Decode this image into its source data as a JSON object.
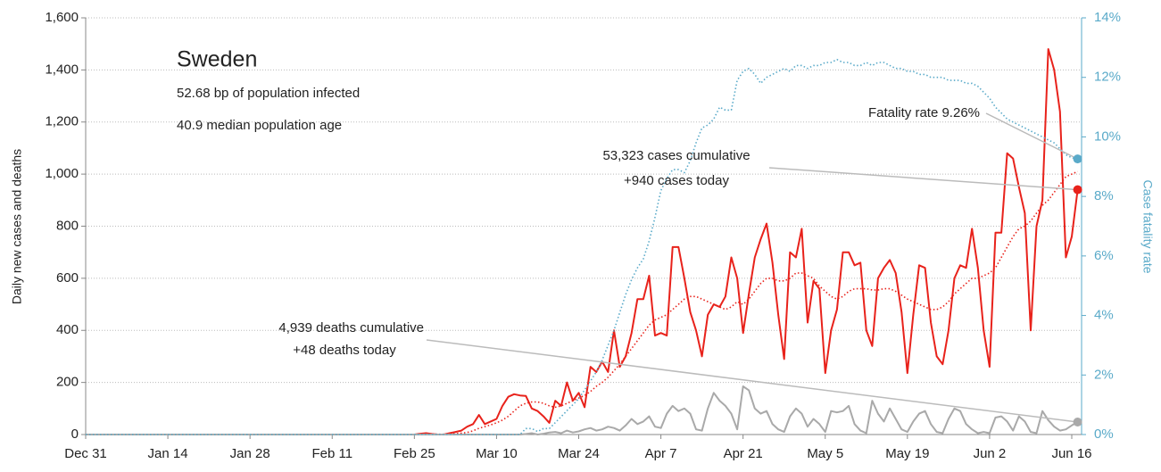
{
  "chart_data": {
    "type": "line",
    "title": "Sweden",
    "annotations": [
      "52.68 bp of population infected",
      "40.9 median population age",
      "Fatality rate 9.26%",
      "53,323 cases cumulative",
      "+940 cases today",
      "4,939 deaths cumulative",
      "+48 deaths today"
    ],
    "ylabel": "Daily new cases and deaths",
    "y2label": "Case fatality rate",
    "ylim": [
      0,
      1600
    ],
    "yticks": [
      0,
      200,
      400,
      600,
      800,
      {
        "value": 1000,
        "label": "1,000"
      },
      {
        "value": 1200,
        "label": "1,200"
      },
      {
        "value": 1400,
        "label": "1,400"
      },
      {
        "value": 1600,
        "label": "1,600"
      }
    ],
    "y2lim": [
      0,
      14
    ],
    "y2ticks": [
      {
        "value": 0,
        "label": "0%"
      },
      {
        "value": 2,
        "label": "2%"
      },
      {
        "value": 4,
        "label": "4%"
      },
      {
        "value": 6,
        "label": "6%"
      },
      {
        "value": 8,
        "label": "8%"
      },
      {
        "value": 10,
        "label": "10%"
      },
      {
        "value": 12,
        "label": "12%"
      },
      {
        "value": 14,
        "label": "14%"
      }
    ],
    "grid": true,
    "categories": [
      "Dec 31",
      null,
      null,
      null,
      null,
      null,
      null,
      null,
      null,
      null,
      null,
      null,
      null,
      null,
      "Jan 14",
      null,
      null,
      null,
      null,
      null,
      null,
      null,
      null,
      null,
      null,
      null,
      null,
      null,
      "Jan 28",
      null,
      null,
      null,
      null,
      null,
      null,
      null,
      null,
      null,
      null,
      null,
      null,
      null,
      "Feb 11",
      null,
      null,
      null,
      null,
      null,
      null,
      null,
      null,
      null,
      null,
      null,
      null,
      null,
      "Feb 25",
      null,
      null,
      null,
      null,
      null,
      null,
      null,
      null,
      null,
      null,
      null,
      null,
      null,
      "Mar 10",
      null,
      null,
      null,
      null,
      null,
      null,
      null,
      null,
      null,
      null,
      null,
      null,
      null,
      "Mar 24",
      null,
      null,
      null,
      null,
      null,
      null,
      null,
      null,
      null,
      null,
      null,
      null,
      null,
      "Apr 7",
      null,
      null,
      null,
      null,
      null,
      null,
      null,
      null,
      null,
      null,
      null,
      null,
      null,
      "Apr 21",
      null,
      null,
      null,
      null,
      null,
      null,
      null,
      null,
      null,
      null,
      null,
      null,
      null,
      "May 5",
      null,
      null,
      null,
      null,
      null,
      null,
      null,
      null,
      null,
      null,
      null,
      null,
      null,
      "May 19",
      null,
      null,
      null,
      null,
      null,
      null,
      null,
      null,
      null,
      null,
      null,
      null,
      null,
      "Jun 2",
      null,
      null,
      null,
      null,
      null,
      null,
      null,
      null,
      null,
      null,
      null,
      null,
      null,
      "Jun 16",
      null
    ],
    "series": [
      {
        "color": "#e8221b",
        "style": "solid",
        "values": [
          0,
          0,
          0,
          0,
          0,
          0,
          0,
          0,
          0,
          0,
          0,
          0,
          0,
          0,
          0,
          0,
          0,
          0,
          0,
          0,
          0,
          0,
          0,
          0,
          0,
          0,
          0,
          0,
          0,
          0,
          0,
          0,
          0,
          0,
          0,
          0,
          0,
          0,
          0,
          0,
          0,
          0,
          0,
          0,
          0,
          0,
          0,
          0,
          0,
          0,
          0,
          0,
          0,
          0,
          0,
          0,
          0,
          3,
          5,
          2,
          0,
          0,
          5,
          10,
          15,
          30,
          40,
          75,
          40,
          50,
          60,
          110,
          145,
          155,
          150,
          148,
          100,
          90,
          70,
          45,
          130,
          110,
          200,
          130,
          160,
          105,
          260,
          240,
          280,
          240,
          400,
          260,
          300,
          390,
          520,
          520,
          610,
          380,
          390,
          380,
          720,
          720,
          600,
          470,
          400,
          300,
          460,
          500,
          490,
          530,
          680,
          600,
          390,
          540,
          680,
          750,
          810,
          660,
          460,
          290,
          700,
          680,
          790,
          430,
          590,
          560,
          236,
          400,
          480,
          700,
          700,
          650,
          660,
          400,
          340,
          600,
          640,
          670,
          620,
          470,
          236,
          460,
          650,
          640,
          430,
          300,
          270,
          400,
          600,
          650,
          640,
          790,
          640,
          400,
          260,
          775,
          775,
          1080,
          1060,
          950,
          850,
          400,
          800,
          900,
          1480,
          1400,
          1240,
          680,
          760,
          940
        ]
      },
      {
        "color": "#e8221b",
        "style": "dotted",
        "values": [
          0,
          0,
          0,
          0,
          0,
          0,
          0,
          0,
          0,
          0,
          0,
          0,
          0,
          0,
          0,
          0,
          0,
          0,
          0,
          0,
          0,
          0,
          0,
          0,
          0,
          0,
          0,
          0,
          0,
          0,
          0,
          0,
          0,
          0,
          0,
          0,
          0,
          0,
          0,
          0,
          0,
          0,
          0,
          0,
          0,
          0,
          0,
          0,
          0,
          0,
          0,
          0,
          0,
          0,
          0,
          0,
          0,
          1,
          1,
          1,
          1,
          1,
          2,
          3,
          5,
          8,
          14,
          24,
          30,
          37,
          45,
          55,
          70,
          90,
          110,
          120,
          125,
          125,
          120,
          110,
          105,
          110,
          120,
          130,
          140,
          150,
          165,
          185,
          200,
          220,
          245,
          270,
          300,
          330,
          360,
          390,
          420,
          440,
          450,
          460,
          480,
          500,
          520,
          530,
          530,
          520,
          510,
          500,
          490,
          480,
          490,
          510,
          500,
          520,
          550,
          580,
          600,
          600,
          590,
          590,
          600,
          620,
          620,
          610,
          600,
          570,
          550,
          530,
          520,
          530,
          550,
          560,
          560,
          560,
          555,
          555,
          560,
          560,
          550,
          535,
          520,
          510,
          500,
          490,
          480,
          480,
          490,
          510,
          540,
          560,
          580,
          600,
          600,
          610,
          620,
          640,
          680,
          720,
          760,
          790,
          800,
          820,
          850,
          880,
          900,
          930,
          960,
          990,
          1000,
          1010
        ]
      },
      {
        "color": "#a9a9a9",
        "style": "solid",
        "values": [
          0,
          0,
          0,
          0,
          0,
          0,
          0,
          0,
          0,
          0,
          0,
          0,
          0,
          0,
          0,
          0,
          0,
          0,
          0,
          0,
          0,
          0,
          0,
          0,
          0,
          0,
          0,
          0,
          0,
          0,
          0,
          0,
          0,
          0,
          0,
          0,
          0,
          0,
          0,
          0,
          0,
          0,
          0,
          0,
          0,
          0,
          0,
          0,
          0,
          0,
          0,
          0,
          0,
          0,
          0,
          0,
          0,
          0,
          0,
          0,
          0,
          0,
          0,
          0,
          0,
          0,
          0,
          0,
          0,
          0,
          0,
          0,
          0,
          0,
          0,
          2,
          5,
          0,
          3,
          8,
          10,
          5,
          15,
          8,
          12,
          20,
          25,
          15,
          20,
          30,
          25,
          15,
          35,
          60,
          40,
          50,
          70,
          30,
          25,
          80,
          110,
          90,
          100,
          80,
          20,
          15,
          100,
          160,
          130,
          110,
          80,
          20,
          185,
          170,
          100,
          80,
          90,
          40,
          20,
          10,
          70,
          100,
          80,
          30,
          60,
          40,
          10,
          90,
          85,
          90,
          110,
          40,
          15,
          5,
          130,
          80,
          50,
          100,
          60,
          20,
          10,
          50,
          80,
          90,
          40,
          10,
          5,
          60,
          100,
          90,
          40,
          20,
          5,
          10,
          5,
          65,
          70,
          50,
          15,
          70,
          50,
          10,
          5,
          90,
          55,
          30,
          15,
          20,
          35,
          48
        ]
      },
      {
        "color": "#5aaac9",
        "style": "dotted",
        "axis": "y2",
        "values": [
          0,
          0,
          0,
          0,
          0,
          0,
          0,
          0,
          0,
          0,
          0,
          0,
          0,
          0,
          0,
          0,
          0,
          0,
          0,
          0,
          0,
          0,
          0,
          0,
          0,
          0,
          0,
          0,
          0,
          0,
          0,
          0,
          0,
          0,
          0,
          0,
          0,
          0,
          0,
          0,
          0,
          0,
          0,
          0,
          0,
          0,
          0,
          0,
          0,
          0,
          0,
          0,
          0,
          0,
          0,
          0,
          0,
          0,
          0,
          0,
          0,
          0,
          0,
          0,
          0,
          0,
          0,
          0,
          0,
          0,
          0,
          0,
          0,
          0,
          0,
          0.2,
          0.2,
          0.1,
          0.2,
          0.2,
          0.4,
          0.6,
          0.8,
          1.0,
          1.2,
          1.5,
          1.8,
          2.1,
          2.5,
          3.0,
          3.5,
          4.1,
          4.7,
          5.2,
          5.6,
          5.9,
          6.5,
          7.3,
          8.2,
          8.6,
          8.9,
          8.9,
          8.8,
          9.2,
          9.8,
          10.3,
          10.4,
          10.6,
          11.0,
          10.9,
          10.9,
          11.9,
          12.2,
          12.3,
          12.1,
          11.8,
          12.0,
          12.1,
          12.2,
          12.3,
          12.2,
          12.4,
          12.4,
          12.3,
          12.4,
          12.4,
          12.5,
          12.5,
          12.6,
          12.5,
          12.5,
          12.4,
          12.4,
          12.5,
          12.4,
          12.5,
          12.5,
          12.4,
          12.3,
          12.3,
          12.2,
          12.2,
          12.1,
          12.1,
          12.0,
          12.0,
          12.0,
          11.9,
          11.9,
          11.9,
          11.8,
          11.8,
          11.7,
          11.5,
          11.3,
          11.0,
          10.8,
          10.6,
          10.5,
          10.4,
          10.3,
          10.2,
          10.1,
          10.0,
          9.9,
          9.8,
          9.6,
          9.4,
          9.3,
          9.26
        ]
      }
    ]
  }
}
